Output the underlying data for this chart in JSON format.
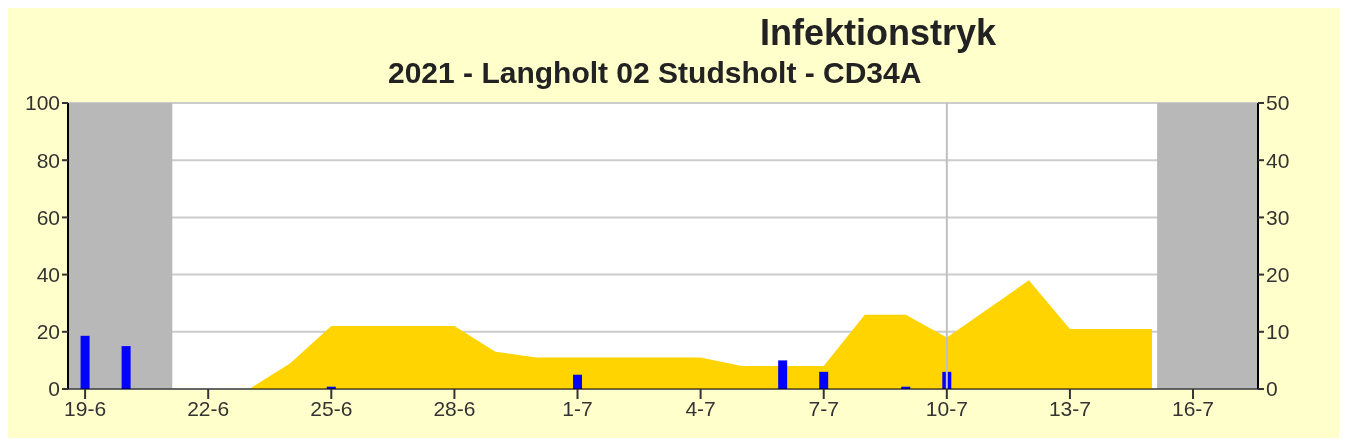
{
  "chart_data": {
    "type": "area",
    "title": "Infektionstryk",
    "subtitle": "2021 - Langholt 02 Studsholt - CD34A",
    "series": [
      {
        "color": "#ffd400",
        "x": [
          "2021-06-23",
          "2021-06-24",
          "2021-06-25",
          "2021-06-26",
          "2021-06-27",
          "2021-06-28",
          "2021-06-29",
          "2021-06-30",
          "2021-07-01",
          "2021-07-02",
          "2021-07-03",
          "2021-07-04",
          "2021-07-05",
          "2021-07-07",
          "2021-07-08",
          "2021-07-09",
          "2021-07-10",
          "2021-07-11",
          "2021-07-12",
          "2021-07-13",
          "2021-07-14",
          "2021-07-15"
        ],
        "values": [
          0,
          9,
          22,
          22,
          22,
          22,
          13,
          11,
          11,
          11,
          11,
          11,
          8,
          8,
          26,
          26,
          18,
          28,
          38,
          21,
          21,
          21
        ]
      },
      {
        "type": "bar",
        "color": "#0000ff",
        "axis": "y2",
        "x": [
          "2021-06-19",
          "2021-06-20",
          "2021-06-25",
          "2021-07-01",
          "2021-07-06",
          "2021-07-07",
          "2021-07-09",
          "2021-07-10"
        ],
        "values": [
          9.3,
          7.5,
          0.4,
          2.5,
          5,
          3,
          0.4,
          3
        ]
      }
    ],
    "xlim": [
      "2021-06-18T14:00",
      "2021-07-17T14:00"
    ],
    "xticks": [
      {
        "value": "2021-06-19",
        "label": "19-6"
      },
      {
        "value": "2021-06-22",
        "label": "22-6"
      },
      {
        "value": "2021-06-25",
        "label": "25-6"
      },
      {
        "value": "2021-06-28",
        "label": "28-6"
      },
      {
        "value": "2021-07-01",
        "label": "1-7"
      },
      {
        "value": "2021-07-04",
        "label": "4-7"
      },
      {
        "value": "2021-07-07",
        "label": "7-7"
      },
      {
        "value": "2021-07-10",
        "label": "10-7"
      },
      {
        "value": "2021-07-13",
        "label": "13-7"
      },
      {
        "value": "2021-07-16",
        "label": "16-7"
      }
    ],
    "ylim": [
      0,
      100
    ],
    "yticks": [
      0,
      20,
      40,
      60,
      80,
      100
    ],
    "y2lim": [
      0,
      50
    ],
    "y2ticks": [
      0,
      10,
      20,
      30,
      40,
      50
    ],
    "grid": "y",
    "bands": [
      {
        "axis": "x",
        "from": "2021-06-18T14:00",
        "to": "2021-06-21T03:00",
        "color": "#b8b8b8"
      },
      {
        "axis": "x",
        "from": "2021-07-15T03:00",
        "to": "2021-07-17T14:00",
        "color": "#b8b8b8"
      }
    ],
    "ref_lines": [
      {
        "axis": "x",
        "value": "2021-07-10",
        "color": "#c0c0c0"
      }
    ]
  }
}
